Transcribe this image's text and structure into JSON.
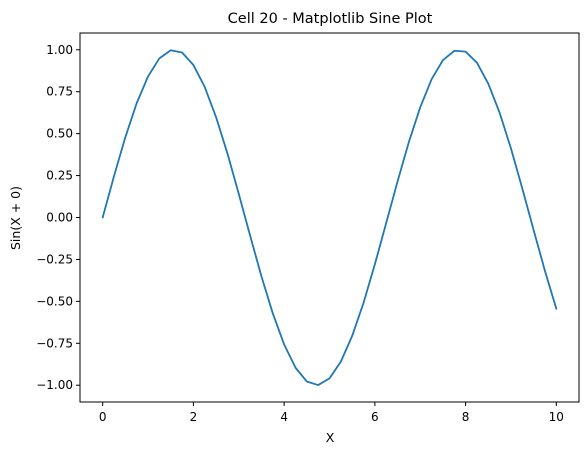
{
  "chart_data": {
    "type": "line",
    "title": "Cell 20 - Matplotlib Sine Plot",
    "xlabel": "X",
    "ylabel": "Sin(X + 0)",
    "xlim": [
      -0.5,
      10.5
    ],
    "ylim": [
      -1.1,
      1.1
    ],
    "x_ticks": [
      0,
      2,
      4,
      6,
      8,
      10
    ],
    "x_tick_labels": [
      "0",
      "2",
      "4",
      "6",
      "8",
      "10"
    ],
    "y_ticks": [
      -1.0,
      -0.75,
      -0.5,
      -0.25,
      0.0,
      0.25,
      0.5,
      0.75,
      1.0
    ],
    "y_tick_labels": [
      "−1.00",
      "−0.75",
      "−0.50",
      "−0.25",
      "0.00",
      "0.25",
      "0.50",
      "0.75",
      "1.00"
    ],
    "grid": false,
    "legend": "none",
    "series": [
      {
        "color": "#1f77b4",
        "x": [
          0.0,
          0.25,
          0.5,
          0.75,
          1.0,
          1.25,
          1.5,
          1.75,
          2.0,
          2.25,
          2.5,
          2.75,
          3.0,
          3.25,
          3.5,
          3.75,
          4.0,
          4.25,
          4.5,
          4.75,
          5.0,
          5.25,
          5.5,
          5.75,
          6.0,
          6.25,
          6.5,
          6.75,
          7.0,
          7.25,
          7.5,
          7.75,
          8.0,
          8.25,
          8.5,
          8.75,
          9.0,
          9.25,
          9.5,
          9.75,
          10.0
        ],
        "y": [
          0.0,
          0.247,
          0.479,
          0.682,
          0.841,
          0.949,
          0.997,
          0.984,
          0.909,
          0.778,
          0.598,
          0.382,
          0.141,
          -0.108,
          -0.351,
          -0.572,
          -0.757,
          -0.895,
          -0.978,
          -0.999,
          -0.959,
          -0.859,
          -0.706,
          -0.509,
          -0.279,
          -0.033,
          0.215,
          0.451,
          0.657,
          0.824,
          0.938,
          0.994,
          0.989,
          0.923,
          0.798,
          0.625,
          0.412,
          0.173,
          -0.075,
          -0.319,
          -0.544
        ]
      }
    ]
  }
}
